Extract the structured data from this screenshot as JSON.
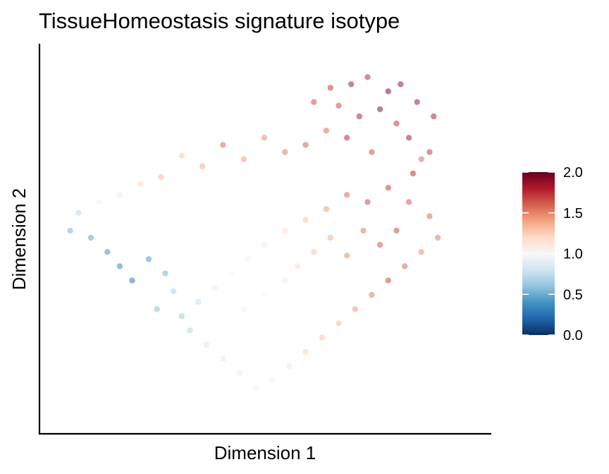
{
  "chart_data": {
    "type": "scatter",
    "title": "TissueHomeostasis signature isotype",
    "xlabel": "Dimension 1",
    "ylabel": "Dimension 2",
    "x_ticks_shown": false,
    "y_ticks_shown": false,
    "grid": false,
    "point_alpha": 0.5,
    "colorbar": {
      "position": "right",
      "min": 0.0,
      "max": 2.0,
      "ticks": [
        "0.0",
        "0.5",
        "1.0",
        "1.5",
        "2.0"
      ],
      "colors": [
        "#053061",
        "#2166ac",
        "#4393c3",
        "#92c5de",
        "#d1e5f0",
        "#f7f7f7",
        "#fddbc7",
        "#f4a582",
        "#d6604d",
        "#b2182b",
        "#67001f"
      ]
    },
    "points_note_ref": "points",
    "points": [
      [
        0.71,
        0.93,
        1.9
      ],
      [
        0.75,
        0.95,
        1.8
      ],
      [
        0.8,
        0.91,
        2.0
      ],
      [
        0.68,
        0.87,
        1.7
      ],
      [
        0.73,
        0.84,
        1.85
      ],
      [
        0.78,
        0.86,
        1.95
      ],
      [
        0.82,
        0.82,
        1.75
      ],
      [
        0.65,
        0.8,
        1.6
      ],
      [
        0.7,
        0.78,
        1.8
      ],
      [
        0.85,
        0.78,
        1.9
      ],
      [
        0.6,
        0.76,
        1.65
      ],
      [
        0.76,
        0.74,
        1.7
      ],
      [
        0.88,
        0.72,
        1.6
      ],
      [
        0.55,
        0.74,
        1.55
      ],
      [
        0.5,
        0.78,
        1.5
      ],
      [
        0.45,
        0.72,
        1.45
      ],
      [
        0.4,
        0.76,
        1.6
      ],
      [
        0.35,
        0.7,
        1.4
      ],
      [
        0.3,
        0.73,
        1.3
      ],
      [
        0.25,
        0.67,
        1.35
      ],
      [
        0.2,
        0.65,
        1.2
      ],
      [
        0.15,
        0.62,
        1.1
      ],
      [
        0.1,
        0.6,
        0.95
      ],
      [
        0.05,
        0.57,
        0.7
      ],
      [
        0.03,
        0.52,
        0.5
      ],
      [
        0.08,
        0.5,
        0.45
      ],
      [
        0.12,
        0.46,
        0.35
      ],
      [
        0.15,
        0.42,
        0.3
      ],
      [
        0.18,
        0.38,
        0.2
      ],
      [
        0.22,
        0.44,
        0.4
      ],
      [
        0.26,
        0.4,
        0.5
      ],
      [
        0.28,
        0.35,
        0.65
      ],
      [
        0.24,
        0.3,
        0.55
      ],
      [
        0.3,
        0.28,
        0.6
      ],
      [
        0.34,
        0.32,
        0.75
      ],
      [
        0.38,
        0.36,
        0.9
      ],
      [
        0.42,
        0.4,
        1.0
      ],
      [
        0.46,
        0.44,
        1.05
      ],
      [
        0.5,
        0.48,
        1.1
      ],
      [
        0.55,
        0.52,
        1.15
      ],
      [
        0.6,
        0.55,
        1.3
      ],
      [
        0.65,
        0.58,
        1.45
      ],
      [
        0.7,
        0.62,
        1.6
      ],
      [
        0.75,
        0.6,
        1.7
      ],
      [
        0.8,
        0.64,
        1.75
      ],
      [
        0.85,
        0.6,
        1.65
      ],
      [
        0.9,
        0.56,
        1.6
      ],
      [
        0.92,
        0.5,
        1.55
      ],
      [
        0.88,
        0.46,
        1.5
      ],
      [
        0.84,
        0.42,
        1.6
      ],
      [
        0.8,
        0.38,
        1.7
      ],
      [
        0.76,
        0.34,
        1.55
      ],
      [
        0.72,
        0.3,
        1.45
      ],
      [
        0.68,
        0.26,
        1.35
      ],
      [
        0.64,
        0.22,
        1.3
      ],
      [
        0.6,
        0.18,
        1.25
      ],
      [
        0.56,
        0.14,
        1.15
      ],
      [
        0.52,
        0.1,
        1.05
      ],
      [
        0.48,
        0.08,
        0.95
      ],
      [
        0.44,
        0.12,
        0.9
      ],
      [
        0.4,
        0.16,
        0.85
      ],
      [
        0.36,
        0.2,
        0.8
      ],
      [
        0.32,
        0.24,
        0.7
      ],
      [
        0.45,
        0.3,
        0.95
      ],
      [
        0.5,
        0.34,
        1.0
      ],
      [
        0.55,
        0.38,
        1.1
      ],
      [
        0.58,
        0.42,
        1.2
      ],
      [
        0.62,
        0.46,
        1.3
      ],
      [
        0.66,
        0.5,
        1.4
      ],
      [
        0.7,
        0.45,
        1.5
      ],
      [
        0.74,
        0.52,
        1.55
      ],
      [
        0.78,
        0.48,
        1.65
      ],
      [
        0.82,
        0.52,
        1.7
      ],
      [
        0.86,
        0.68,
        1.8
      ],
      [
        0.9,
        0.74,
        1.75
      ],
      [
        0.91,
        0.84,
        1.85
      ],
      [
        0.87,
        0.88,
        1.9
      ],
      [
        0.83,
        0.93,
        1.95
      ],
      [
        0.66,
        0.92,
        1.75
      ],
      [
        0.62,
        0.88,
        1.7
      ]
    ]
  }
}
